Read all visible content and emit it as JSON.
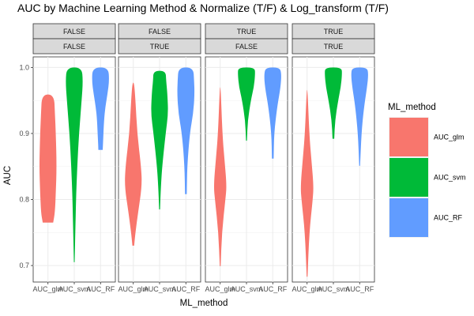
{
  "chart_data": {
    "type": "violin",
    "title": "AUC by Machine Learning Method & Normalize (T/F) & Log_transform (T/F)",
    "xlabel": "ML_method",
    "ylabel": "AUC",
    "ylim": [
      0.675,
      1.016
    ],
    "yticks": [
      "0.7",
      "0.8",
      "0.9",
      "1.0"
    ],
    "ytick_values": [
      0.7,
      0.8,
      0.9,
      1.0
    ],
    "grid": true,
    "categories": [
      "AUC_glm",
      "AUC_svm",
      "AUC_RF"
    ],
    "legend": {
      "title": "ML_method",
      "position": "right",
      "entries": [
        "AUC_glm",
        "AUC_svm",
        "AUC_RF"
      ]
    },
    "colors": {
      "AUC_glm": "#F8766D",
      "AUC_svm": "#00BA38",
      "AUC_RF": "#619CFF",
      "strip_fill": "#d9d9d9",
      "grid": "#ebebeb"
    },
    "panels": [
      {
        "strip_top": "FALSE",
        "strip_bottom": "FALSE",
        "violins": [
          {
            "method": "AUC_glm",
            "min": 0.765,
            "max": 0.959,
            "profile": [
              [
                0.765,
                0.6
              ],
              [
                0.78,
                0.8
              ],
              [
                0.81,
                0.9
              ],
              [
                0.85,
                1.0
              ],
              [
                0.9,
                0.9
              ],
              [
                0.93,
                0.8
              ],
              [
                0.959,
                0.7
              ]
            ]
          },
          {
            "method": "AUC_svm",
            "min": 0.705,
            "max": 1.0,
            "profile": [
              [
                0.705,
                0.05
              ],
              [
                0.75,
                0.12
              ],
              [
                0.8,
                0.2
              ],
              [
                0.85,
                0.35
              ],
              [
                0.9,
                0.55
              ],
              [
                0.95,
                0.85
              ],
              [
                0.98,
                1.0
              ],
              [
                1.0,
                0.85
              ]
            ]
          },
          {
            "method": "AUC_RF",
            "min": 0.875,
            "max": 1.0,
            "profile": [
              [
                0.875,
                0.25
              ],
              [
                0.89,
                0.3
              ],
              [
                0.92,
                0.4
              ],
              [
                0.94,
                0.55
              ],
              [
                0.96,
                0.8
              ],
              [
                0.98,
                1.0
              ],
              [
                1.0,
                0.9
              ]
            ]
          }
        ]
      },
      {
        "strip_top": "FALSE",
        "strip_bottom": "TRUE",
        "violins": [
          {
            "method": "AUC_glm",
            "min": 0.73,
            "max": 0.977,
            "profile": [
              [
                0.73,
                0.1
              ],
              [
                0.75,
                0.25
              ],
              [
                0.78,
                0.55
              ],
              [
                0.82,
                1.0
              ],
              [
                0.85,
                0.9
              ],
              [
                0.9,
                0.45
              ],
              [
                0.95,
                0.25
              ],
              [
                0.977,
                0.1
              ]
            ]
          },
          {
            "method": "AUC_svm",
            "min": 0.785,
            "max": 0.995,
            "profile": [
              [
                0.785,
                0.05
              ],
              [
                0.82,
                0.15
              ],
              [
                0.85,
                0.3
              ],
              [
                0.9,
                0.7
              ],
              [
                0.93,
                1.0
              ],
              [
                0.96,
                0.9
              ],
              [
                0.98,
                0.75
              ],
              [
                0.995,
                0.7
              ]
            ]
          },
          {
            "method": "AUC_RF",
            "min": 0.808,
            "max": 1.0,
            "profile": [
              [
                0.808,
                0.1
              ],
              [
                0.85,
                0.15
              ],
              [
                0.9,
                0.45
              ],
              [
                0.93,
                0.85
              ],
              [
                0.96,
                1.0
              ],
              [
                0.98,
                0.95
              ],
              [
                1.0,
                0.85
              ]
            ]
          }
        ]
      },
      {
        "strip_top": "TRUE",
        "strip_bottom": "FALSE",
        "violins": [
          {
            "method": "AUC_glm",
            "min": 0.699,
            "max": 0.97,
            "profile": [
              [
                0.699,
                0.05
              ],
              [
                0.75,
                0.2
              ],
              [
                0.8,
                0.6
              ],
              [
                0.82,
                0.75
              ],
              [
                0.86,
                0.5
              ],
              [
                0.9,
                0.25
              ],
              [
                0.97,
                0.05
              ]
            ]
          },
          {
            "method": "AUC_svm",
            "min": 0.889,
            "max": 1.0,
            "profile": [
              [
                0.889,
                0.05
              ],
              [
                0.92,
                0.15
              ],
              [
                0.95,
                0.5
              ],
              [
                0.97,
                0.85
              ],
              [
                0.99,
                1.0
              ],
              [
                1.0,
                0.95
              ]
            ]
          },
          {
            "method": "AUC_RF",
            "min": 0.862,
            "max": 1.0,
            "profile": [
              [
                0.862,
                0.1
              ],
              [
                0.9,
                0.15
              ],
              [
                0.94,
                0.5
              ],
              [
                0.97,
                0.9
              ],
              [
                0.99,
                1.0
              ],
              [
                1.0,
                0.8
              ]
            ]
          }
        ]
      },
      {
        "strip_top": "TRUE",
        "strip_bottom": "TRUE",
        "violins": [
          {
            "method": "AUC_glm",
            "min": 0.683,
            "max": 0.966,
            "profile": [
              [
                0.683,
                0.05
              ],
              [
                0.75,
                0.25
              ],
              [
                0.8,
                0.65
              ],
              [
                0.82,
                0.75
              ],
              [
                0.86,
                0.5
              ],
              [
                0.9,
                0.25
              ],
              [
                0.966,
                0.05
              ]
            ]
          },
          {
            "method": "AUC_svm",
            "min": 0.892,
            "max": 1.0,
            "profile": [
              [
                0.892,
                0.1
              ],
              [
                0.92,
                0.2
              ],
              [
                0.95,
                0.55
              ],
              [
                0.97,
                0.85
              ],
              [
                0.99,
                1.0
              ],
              [
                1.0,
                0.95
              ]
            ]
          },
          {
            "method": "AUC_RF",
            "min": 0.851,
            "max": 1.0,
            "profile": [
              [
                0.851,
                0.05
              ],
              [
                0.9,
                0.2
              ],
              [
                0.94,
                0.5
              ],
              [
                0.97,
                0.85
              ],
              [
                0.99,
                1.0
              ],
              [
                1.0,
                0.85
              ]
            ]
          }
        ]
      }
    ]
  }
}
